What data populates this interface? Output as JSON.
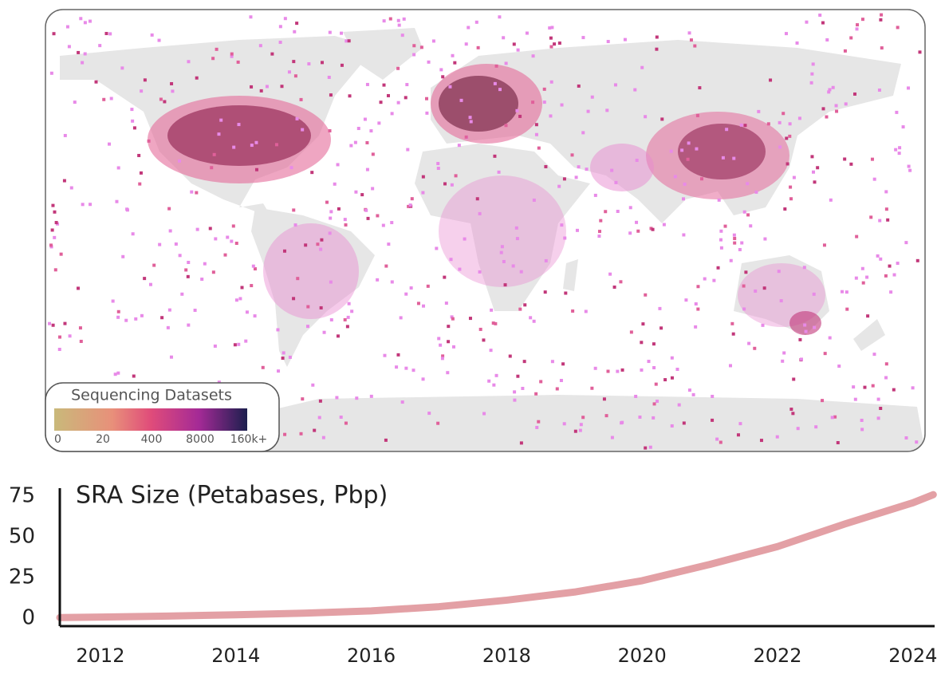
{
  "map": {
    "legend": {
      "title": "Sequencing Datasets",
      "ticks": [
        0,
        20,
        400,
        8000,
        {
          "value": 160000,
          "label": "160k+"
        }
      ]
    }
  },
  "chart_data": {
    "type": "line",
    "title": "SRA Size (Petabases, Pbp)",
    "x": [
      2011.4,
      2012,
      2013,
      2014,
      2015,
      2016,
      2017,
      2018,
      2019,
      2020,
      2021,
      2022,
      2023,
      2024,
      2024.3
    ],
    "series": [
      {
        "color": "#e3a0a5",
        "values": [
          0.3,
          0.6,
          1.2,
          2,
          3,
          4.4,
          7,
          11,
          16,
          23,
          33,
          44,
          58,
          71,
          76
        ]
      }
    ],
    "xlim": [
      2011.4,
      2024.32
    ],
    "xticks": [
      2012,
      2014,
      2016,
      2018,
      2020,
      2022,
      2024
    ],
    "ylim": [
      -5,
      80
    ],
    "yticks": [
      0,
      25,
      50,
      75
    ]
  }
}
